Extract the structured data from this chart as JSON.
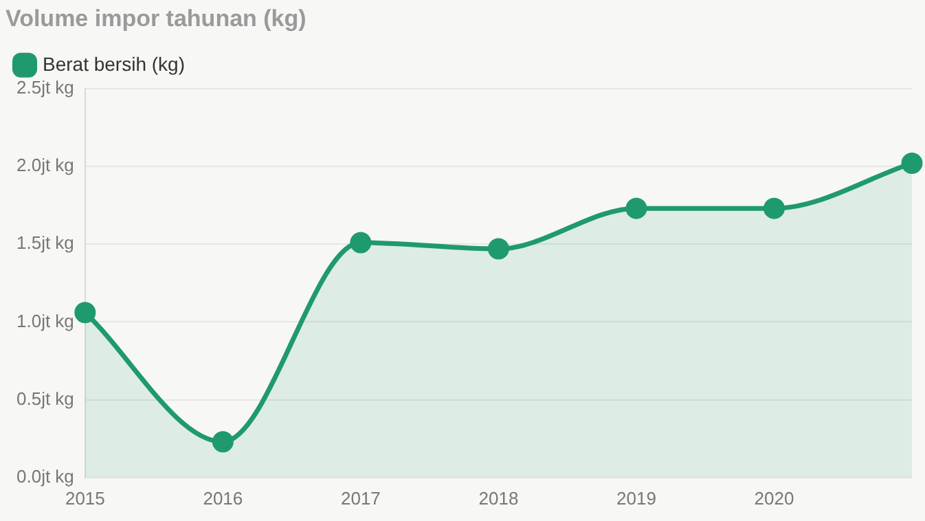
{
  "chart_data": {
    "type": "area",
    "title": "Volume impor tahunan (kg)",
    "categories": [
      "2015",
      "2016",
      "2017",
      "2018",
      "2019",
      "2020",
      null
    ],
    "series": [
      {
        "name": "Berat bersih (kg)",
        "color": "#1f9a6e",
        "values": [
          1.06,
          0.23,
          1.51,
          1.47,
          1.73,
          1.73,
          2.02
        ]
      }
    ],
    "ylim": [
      0,
      2.5
    ],
    "yticks": [
      {
        "value": 0,
        "label": "0.0jt kg"
      },
      {
        "value": 0.5,
        "label": "0.5jt kg"
      },
      {
        "value": 1,
        "label": "1.0jt kg"
      },
      {
        "value": 1.5,
        "label": "1.5jt kg"
      },
      {
        "value": 2,
        "label": "2.0jt kg"
      },
      {
        "value": 2.5,
        "label": "2.5jt kg"
      }
    ],
    "grid": "y",
    "legend": "top left",
    "marker": "circle",
    "line_style": "solid"
  }
}
